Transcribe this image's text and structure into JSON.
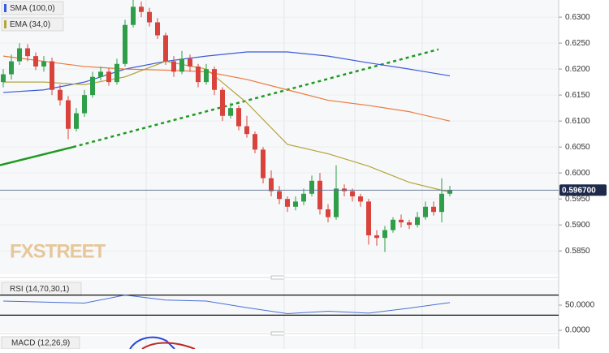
{
  "chart_data": {
    "type": "candlestick",
    "watermark": "FXSTREET",
    "candles": {
      "open": [
        0.6175,
        0.619,
        0.6215,
        0.624,
        0.6225,
        0.6205,
        0.6215,
        0.616,
        0.614,
        0.6085,
        0.6115,
        0.615,
        0.6185,
        0.6195,
        0.6175,
        0.621,
        0.6285,
        0.632,
        0.631,
        0.629,
        0.6265,
        0.6215,
        0.6195,
        0.622,
        0.6205,
        0.6175,
        0.62,
        0.616,
        0.611,
        0.6125,
        0.609,
        0.6075,
        0.6045,
        0.599,
        0.5965,
        0.595,
        0.5935,
        0.5945,
        0.596,
        0.5985,
        0.593,
        0.5915,
        0.597,
        0.5965,
        0.5955,
        0.5945,
        0.588,
        0.5875,
        0.589,
        0.591,
        0.5905,
        0.59,
        0.5915,
        0.5935,
        0.5925,
        0.596
      ],
      "high": [
        0.62,
        0.6228,
        0.625,
        0.6248,
        0.6232,
        0.6225,
        0.6222,
        0.617,
        0.6148,
        0.6125,
        0.616,
        0.6195,
        0.6205,
        0.6202,
        0.622,
        0.6295,
        0.6338,
        0.633,
        0.6318,
        0.6298,
        0.627,
        0.6225,
        0.6235,
        0.6228,
        0.621,
        0.621,
        0.6205,
        0.6165,
        0.6135,
        0.613,
        0.611,
        0.608,
        0.605,
        0.6005,
        0.5975,
        0.5955,
        0.5955,
        0.597,
        0.5995,
        0.6,
        0.594,
        0.6015,
        0.5978,
        0.597,
        0.596,
        0.595,
        0.589,
        0.5898,
        0.5915,
        0.592,
        0.591,
        0.5925,
        0.5945,
        0.5945,
        0.599,
        0.5975
      ],
      "low": [
        0.6165,
        0.618,
        0.6208,
        0.6215,
        0.6198,
        0.6195,
        0.615,
        0.613,
        0.6065,
        0.608,
        0.6108,
        0.6145,
        0.6178,
        0.6168,
        0.617,
        0.6205,
        0.628,
        0.63,
        0.6282,
        0.6258,
        0.6208,
        0.6185,
        0.619,
        0.6195,
        0.6165,
        0.617,
        0.615,
        0.61,
        0.6105,
        0.6082,
        0.6068,
        0.6038,
        0.598,
        0.5955,
        0.594,
        0.5925,
        0.5928,
        0.5938,
        0.5955,
        0.592,
        0.5905,
        0.591,
        0.5955,
        0.5945,
        0.5935,
        0.5862,
        0.586,
        0.5848,
        0.5885,
        0.5895,
        0.5892,
        0.5895,
        0.591,
        0.5918,
        0.5905,
        0.5955
      ],
      "close": [
        0.619,
        0.6215,
        0.624,
        0.6225,
        0.6205,
        0.6215,
        0.616,
        0.614,
        0.6085,
        0.6115,
        0.615,
        0.6185,
        0.6195,
        0.6175,
        0.621,
        0.6285,
        0.632,
        0.631,
        0.629,
        0.6265,
        0.6215,
        0.6195,
        0.622,
        0.6205,
        0.6175,
        0.62,
        0.616,
        0.611,
        0.6125,
        0.609,
        0.6075,
        0.6045,
        0.599,
        0.5965,
        0.595,
        0.5935,
        0.5945,
        0.596,
        0.5985,
        0.593,
        0.5915,
        0.597,
        0.5965,
        0.5955,
        0.5945,
        0.588,
        0.5875,
        0.589,
        0.591,
        0.5905,
        0.59,
        0.5915,
        0.5935,
        0.5925,
        0.596,
        0.5967
      ]
    },
    "up_color": "#2e9e48",
    "down_color": "#d8433c",
    "series": [
      {
        "name": "SMA (100,0)",
        "color": "#3a5bd9",
        "x": [
          0,
          5,
          10,
          15,
          20,
          25,
          30,
          35,
          40,
          45,
          50,
          55
        ],
        "values": [
          0.6155,
          0.616,
          0.6175,
          0.62,
          0.6215,
          0.6225,
          0.6233,
          0.6233,
          0.6225,
          0.6212,
          0.62,
          0.6187
        ]
      },
      {
        "name": "EMA (34,0)",
        "color": "#b3a63a",
        "x": [
          0,
          5,
          10,
          15,
          20,
          25,
          30,
          35,
          40,
          45,
          50,
          55
        ],
        "values": [
          0.6175,
          0.6175,
          0.617,
          0.6185,
          0.6215,
          0.62,
          0.6135,
          0.6055,
          0.6037,
          0.6013,
          0.5982,
          0.5963
        ]
      },
      {
        "color": "#ec7a3c",
        "x": [
          0,
          5,
          10,
          15,
          20,
          25,
          30,
          35,
          40,
          45,
          50,
          55
        ],
        "values": [
          0.6225,
          0.6215,
          0.6205,
          0.62,
          0.6198,
          0.6195,
          0.618,
          0.616,
          0.614,
          0.613,
          0.6118,
          0.61
        ]
      }
    ],
    "trendlines": [
      {
        "color": "#1f9a1f",
        "dashed": false,
        "x": [
          -0.4,
          8.6
        ],
        "values": [
          0.6015,
          0.605
        ]
      },
      {
        "color": "#1f9a1f",
        "dashed": true,
        "x": [
          8.6,
          53.6
        ],
        "values": [
          0.605,
          0.6238
        ]
      }
    ],
    "last_price": 0.5967,
    "last_price_label": "0.596700",
    "ylim": [
      0.5805,
      0.6333
    ],
    "yticks": [
      {
        "value": 0.585,
        "label": "0.5850"
      },
      {
        "value": 0.59,
        "label": "0.5900"
      },
      {
        "value": 0.595,
        "label": "0.5950"
      },
      {
        "value": 0.6,
        "label": "0.6000"
      },
      {
        "value": 0.605,
        "label": "0.6050"
      },
      {
        "value": 0.61,
        "label": "0.6100"
      },
      {
        "value": 0.615,
        "label": "0.6150"
      },
      {
        "value": 0.62,
        "label": "0.6200"
      },
      {
        "value": 0.625,
        "label": "0.6250"
      },
      {
        "value": 0.63,
        "label": "0.6300"
      }
    ],
    "rsi": {
      "name": "RSI (14,70,30,1)",
      "color": "#4a6fd6",
      "x": [
        0,
        5,
        10,
        15,
        20,
        25,
        30,
        35,
        40,
        45,
        50,
        55
      ],
      "values": [
        58,
        56,
        54,
        70,
        60,
        58,
        45,
        33,
        38,
        34,
        44,
        55
      ],
      "ylim": [
        0,
        100
      ],
      "levels": [
        70,
        30
      ],
      "yticks": [
        {
          "value": 50,
          "label": "50.0000"
        },
        {
          "value": 0,
          "label": "0.0000"
        }
      ]
    },
    "macd": {
      "name": "MACD (12,26,9)"
    }
  }
}
